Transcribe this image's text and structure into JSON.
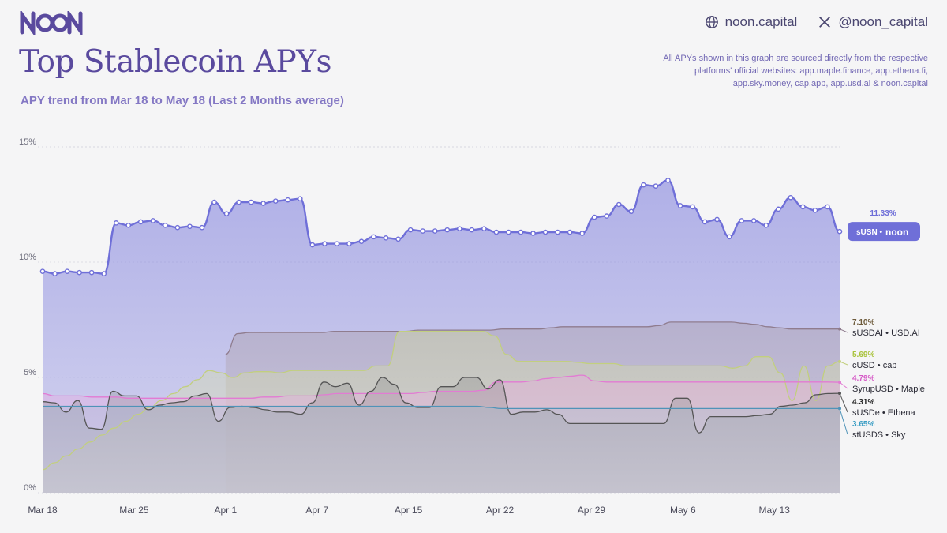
{
  "header": {
    "website": "noon.capital",
    "twitter": "@noon_capital",
    "title": "Top Stablecoin APYs",
    "subtitle": "APY trend from Mar 18 to May 18 (Last 2 Months average)",
    "note": "All APYs shown in this graph are sourced directly from the respective platforms' official websites: app.maple.finance, app.ethena.fi, app.sky.money, cap.app, app.usd.ai & noon.capital"
  },
  "colors": {
    "sUSN": "#6f6fd8",
    "sUSDAI": "#8f7c8e",
    "cUSD": "#c2cf7e",
    "SyrupUSD": "#e27bd3",
    "sUSDe": "#555555",
    "stUSDS": "#4f93b8"
  },
  "chart_data": {
    "type": "area",
    "x_start": "Mar 18",
    "x_end": "May 18",
    "ylim": [
      0,
      15
    ],
    "yticks": [
      "0%",
      "5%",
      "10%",
      "15%"
    ],
    "xticks": [
      {
        "day": 0,
        "label": "Mar 18"
      },
      {
        "day": 7,
        "label": "Mar 25"
      },
      {
        "day": 14,
        "label": "Apr 1"
      },
      {
        "day": 21,
        "label": "Apr 7"
      },
      {
        "day": 28,
        "label": "Apr 15"
      },
      {
        "day": 35,
        "label": "Apr 22"
      },
      {
        "day": 42,
        "label": "Apr 29"
      },
      {
        "day": 49,
        "label": "May 6"
      },
      {
        "day": 56,
        "label": "May 13"
      }
    ],
    "series": [
      {
        "name": "sUSN",
        "brand": "noon",
        "final_label": "11.33%",
        "color": "#6f6fd8",
        "values": [
          9.6,
          9.5,
          9.6,
          9.55,
          9.55,
          9.5,
          11.7,
          11.6,
          11.75,
          11.8,
          11.6,
          11.5,
          11.55,
          11.5,
          12.6,
          12.1,
          12.6,
          12.6,
          12.55,
          12.65,
          12.7,
          12.75,
          10.75,
          10.8,
          10.8,
          10.8,
          10.9,
          11.1,
          11.05,
          11.0,
          11.4,
          11.35,
          11.35,
          11.4,
          11.45,
          11.4,
          11.45,
          11.3,
          11.3,
          11.3,
          11.25,
          11.3,
          11.3,
          11.3,
          11.25,
          11.95,
          12.0,
          12.5,
          12.2,
          13.35,
          13.3,
          13.55,
          12.45,
          12.4,
          11.75,
          11.85,
          11.1,
          11.8,
          11.8,
          11.6,
          12.3,
          12.8,
          12.4,
          12.25,
          12.4,
          11.33
        ]
      },
      {
        "name": "sUSDAI",
        "brand": "USD.AI",
        "final_label": "7.10%",
        "color": "#8f7c8e",
        "start_day": 14,
        "values": [
          6.0,
          6.9,
          6.95,
          6.95,
          6.95,
          6.95,
          6.95,
          6.95,
          6.95,
          7.0,
          7.0,
          7.0,
          7.0,
          7.0,
          7.0,
          7.0,
          7.05,
          7.05,
          7.05,
          7.05,
          7.05,
          7.05,
          7.05,
          7.1,
          7.1,
          7.1,
          7.1,
          7.15,
          7.2,
          7.2,
          7.2,
          7.2,
          7.2,
          7.2,
          7.2,
          7.2,
          7.25,
          7.4,
          7.4,
          7.4,
          7.4,
          7.4,
          7.4,
          7.35,
          7.3,
          7.2,
          7.15,
          7.1,
          7.1,
          7.1,
          7.1,
          7.1
        ]
      },
      {
        "name": "cUSD",
        "brand": "cap",
        "final_label": "5.69%",
        "color": "#c2cf7e",
        "values": [
          1.0,
          1.3,
          1.6,
          1.9,
          2.2,
          2.5,
          2.8,
          3.1,
          3.4,
          3.7,
          4.0,
          4.3,
          4.6,
          4.9,
          5.3,
          5.2,
          5.0,
          5.2,
          5.25,
          5.25,
          5.2,
          5.3,
          5.3,
          5.3,
          5.3,
          5.3,
          5.3,
          5.3,
          5.5,
          5.5,
          7.0,
          7.0,
          7.0,
          7.0,
          7.0,
          7.0,
          7.0,
          7.0,
          6.8,
          6.0,
          5.7,
          5.7,
          5.7,
          5.7,
          5.7,
          5.65,
          5.6,
          5.6,
          5.6,
          5.5,
          5.5,
          5.5,
          5.5,
          5.5,
          5.5,
          5.5,
          5.5,
          5.5,
          5.4,
          5.5,
          5.9,
          5.9,
          5.2,
          4.0,
          5.5,
          4.0,
          5.5,
          5.69
        ]
      },
      {
        "name": "SyrupUSD",
        "brand": "Maple",
        "final_label": "4.79%",
        "color": "#e27bd3",
        "values": [
          4.3,
          4.2,
          4.2,
          4.2,
          4.15,
          4.15,
          4.15,
          4.1,
          4.1,
          4.1,
          4.1,
          4.1,
          4.1,
          4.1,
          4.1,
          4.1,
          4.1,
          4.1,
          4.15,
          4.15,
          4.2,
          4.2,
          4.2,
          4.25,
          4.3,
          4.3,
          4.3,
          4.3,
          4.3,
          4.3,
          4.3,
          4.35,
          4.4,
          4.4,
          4.4,
          4.4,
          4.45,
          4.8,
          4.8,
          4.8,
          4.85,
          4.95,
          5.0,
          5.05,
          5.1,
          4.85,
          4.8,
          4.8,
          4.8,
          4.8,
          4.8,
          4.8,
          4.8,
          4.8,
          4.8,
          4.8,
          4.8,
          4.8,
          4.8,
          4.8,
          4.8,
          4.8,
          4.8,
          4.8,
          4.8,
          4.79
        ]
      },
      {
        "name": "sUSDe",
        "brand": "Ethena",
        "final_label": "4.31%",
        "color": "#555555",
        "values": [
          3.95,
          3.9,
          3.5,
          4.0,
          2.8,
          2.75,
          4.4,
          4.2,
          4.2,
          3.6,
          3.8,
          3.9,
          3.95,
          4.2,
          4.3,
          3.1,
          3.7,
          3.75,
          3.7,
          3.6,
          3.5,
          3.5,
          3.4,
          3.9,
          4.8,
          4.6,
          4.75,
          3.8,
          4.4,
          5.0,
          4.7,
          3.9,
          3.7,
          3.7,
          4.6,
          4.6,
          5.0,
          5.0,
          4.5,
          4.9,
          3.4,
          3.5,
          3.5,
          3.6,
          3.4,
          3.0,
          3.0,
          3.0,
          3.0,
          3.0,
          3.0,
          3.0,
          3.0,
          3.0,
          4.1,
          4.1,
          2.6,
          3.3,
          3.3,
          3.3,
          3.3,
          3.35,
          3.4,
          3.75,
          3.8,
          3.9,
          4.25,
          4.3,
          4.31
        ]
      },
      {
        "name": "stUSDS",
        "brand": "Sky",
        "final_label": "3.65%",
        "color": "#4f93b8",
        "values": [
          3.75,
          3.75,
          3.75,
          3.75,
          3.75,
          3.75,
          3.75,
          3.75,
          3.75,
          3.75,
          3.75,
          3.75,
          3.75,
          3.75,
          3.75,
          3.75,
          3.75,
          3.75,
          3.75,
          3.75,
          3.75,
          3.75,
          3.75,
          3.75,
          3.75,
          3.75,
          3.75,
          3.75,
          3.75,
          3.75,
          3.75,
          3.75,
          3.75,
          3.75,
          3.75,
          3.75,
          3.75,
          3.7,
          3.65,
          3.65,
          3.65,
          3.65,
          3.65,
          3.65,
          3.65,
          3.65,
          3.65,
          3.65,
          3.65,
          3.65,
          3.65,
          3.65,
          3.65,
          3.65,
          3.65,
          3.65,
          3.65,
          3.65,
          3.65,
          3.65,
          3.65,
          3.65,
          3.65,
          3.65,
          3.65,
          3.65,
          3.65
        ]
      }
    ]
  }
}
